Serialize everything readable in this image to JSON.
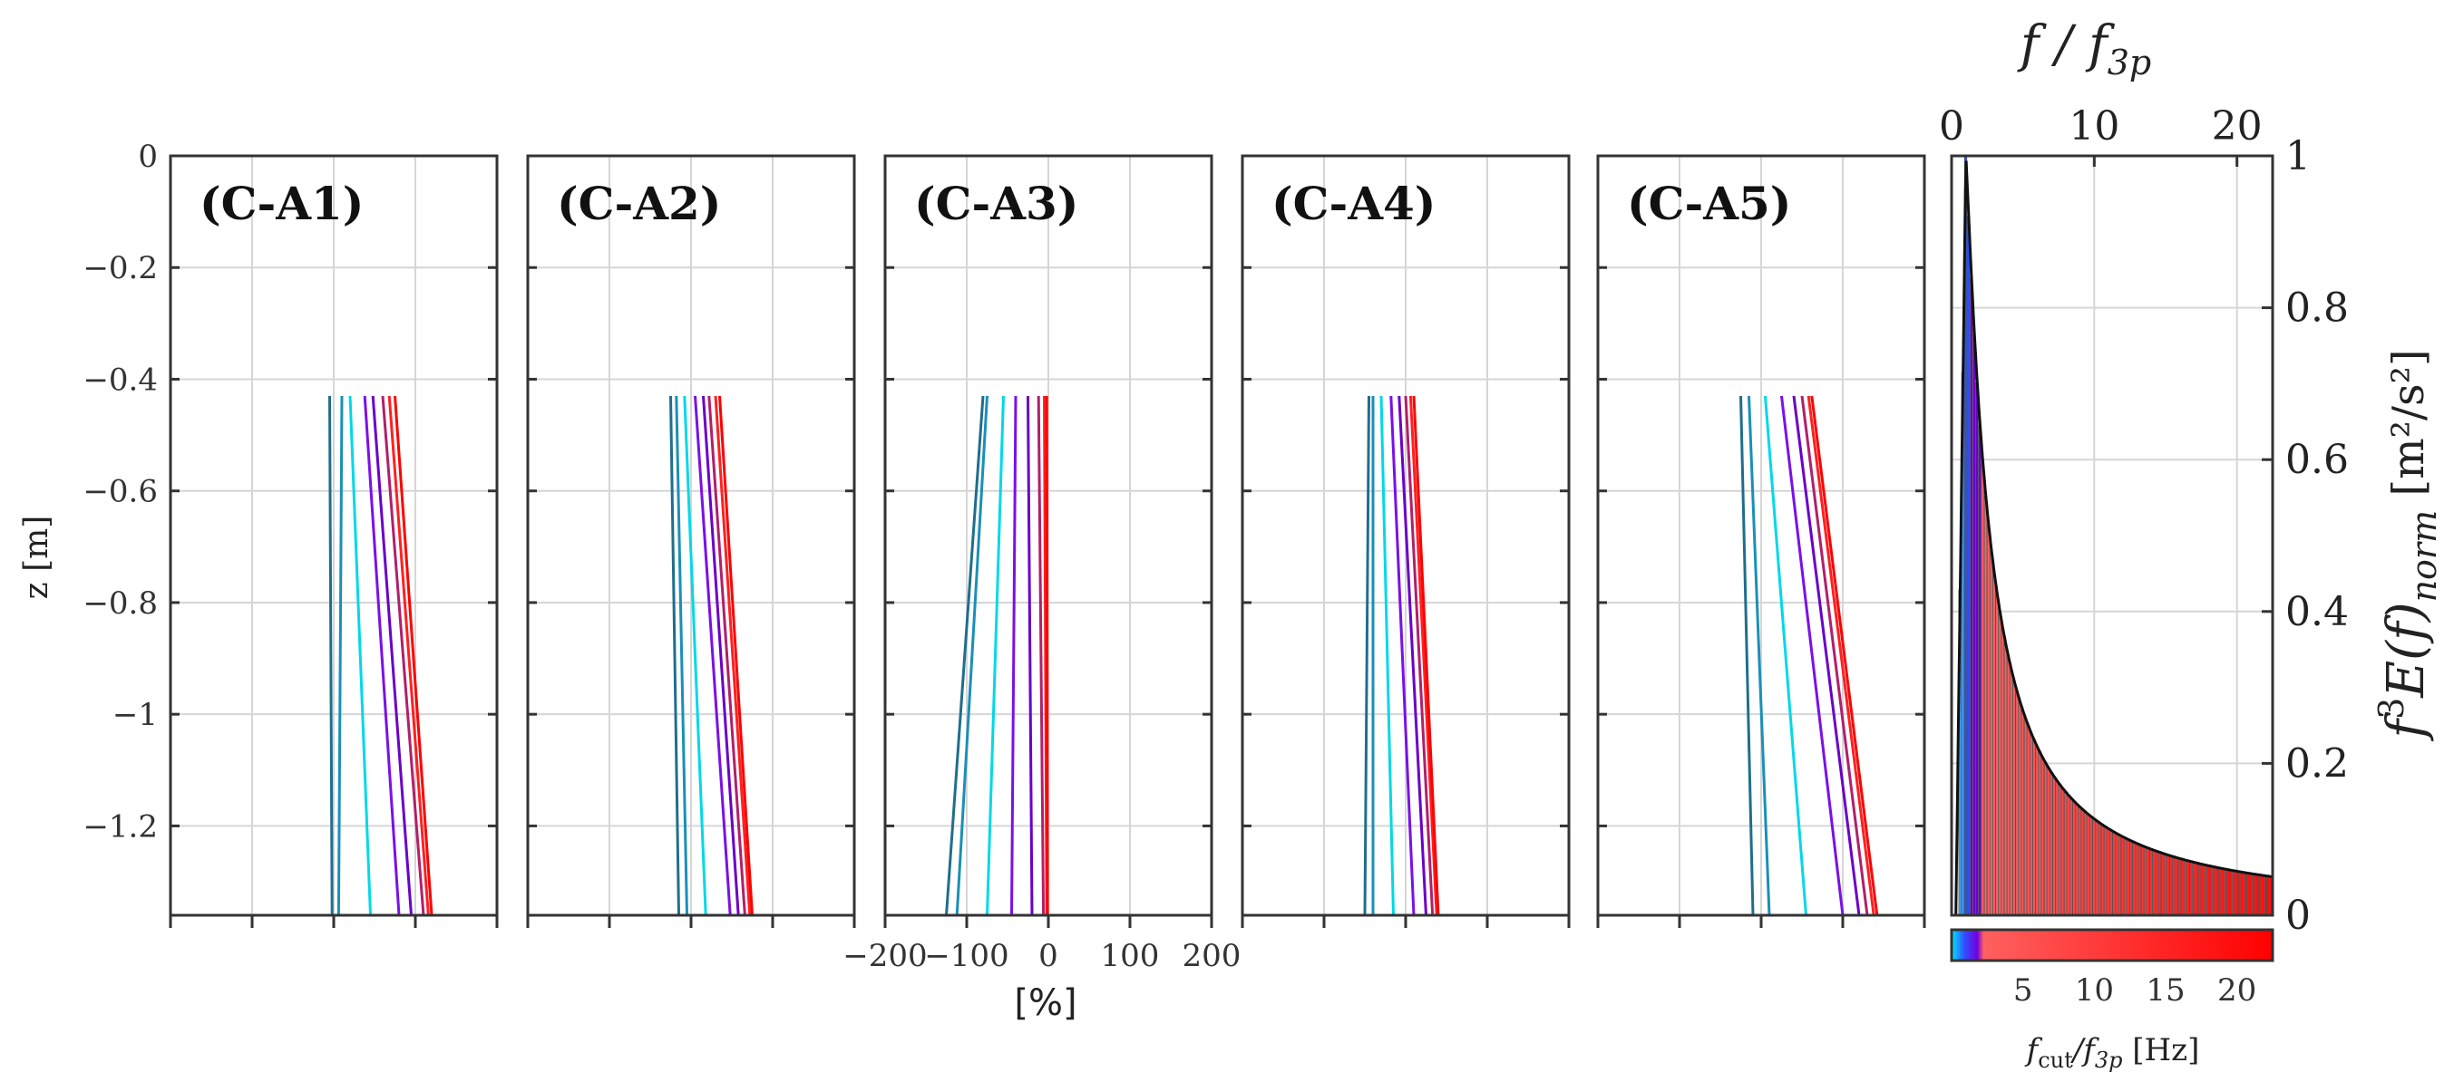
{
  "figure": {
    "shared_ylabel": "z [m]",
    "shared_xlabel": "[%]",
    "line_colors": [
      "#1f6e8c",
      "#1a8fb8",
      "#00d8e8",
      "#7a10e8",
      "#6a00c8",
      "#b0206a",
      "#ff2020",
      "#ff0000"
    ]
  },
  "chart_data": [
    {
      "type": "line",
      "panel": "(C-A1)",
      "xlim": [
        -200,
        200
      ],
      "ylim": [
        -1.36,
        0
      ],
      "grid": true,
      "xticks": [
        -200,
        -100,
        0,
        100,
        200
      ],
      "yticks": [
        0,
        -0.2,
        -0.4,
        -0.6,
        -0.8,
        -1,
        -1.2
      ],
      "show_x_ticklabels": false,
      "show_y_ticklabels": true,
      "series": [
        {
          "color": "#1f6e8c",
          "x_top": -5,
          "x_bottom": -2
        },
        {
          "color": "#1a8fb8",
          "x_top": 10,
          "x_bottom": 6
        },
        {
          "color": "#00d8e8",
          "x_top": 20,
          "x_bottom": 45
        },
        {
          "color": "#7a10e8",
          "x_top": 38,
          "x_bottom": 80
        },
        {
          "color": "#6a00c8",
          "x_top": 48,
          "x_bottom": 95
        },
        {
          "color": "#b0206a",
          "x_top": 60,
          "x_bottom": 110
        },
        {
          "color": "#ff2020",
          "x_top": 68,
          "x_bottom": 116
        },
        {
          "color": "#ff0000",
          "x_top": 75,
          "x_bottom": 120
        }
      ],
      "z_top": -0.43,
      "z_bottom": -1.36
    },
    {
      "type": "line",
      "panel": "(C-A2)",
      "xlim": [
        -200,
        200
      ],
      "ylim": [
        -1.36,
        0
      ],
      "grid": true,
      "xticks": [
        -200,
        -100,
        0,
        100,
        200
      ],
      "yticks": [
        0,
        -0.2,
        -0.4,
        -0.6,
        -0.8,
        -1,
        -1.2
      ],
      "show_x_ticklabels": false,
      "show_y_ticklabels": false,
      "series": [
        {
          "color": "#1f6e8c",
          "x_top": -25,
          "x_bottom": -15
        },
        {
          "color": "#1a8fb8",
          "x_top": -18,
          "x_bottom": -5
        },
        {
          "color": "#00d8e8",
          "x_top": -8,
          "x_bottom": 18
        },
        {
          "color": "#7a10e8",
          "x_top": 5,
          "x_bottom": 48
        },
        {
          "color": "#6a00c8",
          "x_top": 15,
          "x_bottom": 58
        },
        {
          "color": "#b0206a",
          "x_top": 22,
          "x_bottom": 66
        },
        {
          "color": "#ff2020",
          "x_top": 30,
          "x_bottom": 72
        },
        {
          "color": "#ff0000",
          "x_top": 35,
          "x_bottom": 75
        }
      ],
      "z_top": -0.43,
      "z_bottom": -1.36
    },
    {
      "type": "line",
      "panel": "(C-A3)",
      "xlim": [
        -200,
        200
      ],
      "ylim": [
        -1.36,
        0
      ],
      "grid": true,
      "xticks": [
        -200,
        -100,
        0,
        100,
        200
      ],
      "yticks": [
        0,
        -0.2,
        -0.4,
        -0.6,
        -0.8,
        -1,
        -1.2
      ],
      "show_x_ticklabels": true,
      "show_y_ticklabels": false,
      "xticklabels": [
        "−200",
        "−100",
        "0",
        "100",
        "200"
      ],
      "series": [
        {
          "color": "#1f6e8c",
          "x_top": -80,
          "x_bottom": -125
        },
        {
          "color": "#1a8fb8",
          "x_top": -75,
          "x_bottom": -112
        },
        {
          "color": "#00d8e8",
          "x_top": -55,
          "x_bottom": -75
        },
        {
          "color": "#7a10e8",
          "x_top": -40,
          "x_bottom": -45
        },
        {
          "color": "#6a00c8",
          "x_top": -25,
          "x_bottom": -20
        },
        {
          "color": "#b0206a",
          "x_top": -12,
          "x_bottom": -6
        },
        {
          "color": "#ff2020",
          "x_top": -5,
          "x_bottom": -2
        },
        {
          "color": "#ff0000",
          "x_top": -2,
          "x_bottom": -1
        }
      ],
      "z_top": -0.43,
      "z_bottom": -1.36
    },
    {
      "type": "line",
      "panel": "(C-A4)",
      "xlim": [
        -200,
        200
      ],
      "ylim": [
        -1.36,
        0
      ],
      "grid": true,
      "xticks": [
        -200,
        -100,
        0,
        100,
        200
      ],
      "yticks": [
        0,
        -0.2,
        -0.4,
        -0.6,
        -0.8,
        -1,
        -1.2
      ],
      "show_x_ticklabels": false,
      "show_y_ticklabels": false,
      "series": [
        {
          "color": "#1f6e8c",
          "x_top": -45,
          "x_bottom": -50
        },
        {
          "color": "#1a8fb8",
          "x_top": -40,
          "x_bottom": -40
        },
        {
          "color": "#00d8e8",
          "x_top": -30,
          "x_bottom": -15
        },
        {
          "color": "#7a10e8",
          "x_top": -18,
          "x_bottom": 10
        },
        {
          "color": "#6a00c8",
          "x_top": -8,
          "x_bottom": 25
        },
        {
          "color": "#b0206a",
          "x_top": 0,
          "x_bottom": 33
        },
        {
          "color": "#ff2020",
          "x_top": 6,
          "x_bottom": 38
        },
        {
          "color": "#ff0000",
          "x_top": 10,
          "x_bottom": 40
        }
      ],
      "z_top": -0.43,
      "z_bottom": -1.36
    },
    {
      "type": "line",
      "panel": "(C-A5)",
      "xlim": [
        -200,
        200
      ],
      "ylim": [
        -1.36,
        0
      ],
      "grid": true,
      "xticks": [
        -200,
        -100,
        0,
        100,
        200
      ],
      "yticks": [
        0,
        -0.2,
        -0.4,
        -0.6,
        -0.8,
        -1,
        -1.2
      ],
      "show_x_ticklabels": false,
      "show_y_ticklabels": false,
      "series": [
        {
          "color": "#1f6e8c",
          "x_top": -25,
          "x_bottom": -10
        },
        {
          "color": "#1a8fb8",
          "x_top": -15,
          "x_bottom": 10
        },
        {
          "color": "#00d8e8",
          "x_top": 5,
          "x_bottom": 55
        },
        {
          "color": "#7a10e8",
          "x_top": 25,
          "x_bottom": 100
        },
        {
          "color": "#6a00c8",
          "x_top": 40,
          "x_bottom": 120
        },
        {
          "color": "#b0206a",
          "x_top": 50,
          "x_bottom": 130
        },
        {
          "color": "#ff2020",
          "x_top": 58,
          "x_bottom": 138
        },
        {
          "color": "#ff0000",
          "x_top": 62,
          "x_bottom": 142
        }
      ],
      "z_top": -0.43,
      "z_bottom": -1.36
    },
    {
      "type": "bar",
      "panel": "spectrum",
      "top_xlabel": "f / f3p",
      "ylabel": "f^3 E(f)_norm [m^2/s^2]",
      "xlim": [
        0,
        22.5
      ],
      "ylim": [
        0,
        1
      ],
      "top_xticks": [
        0,
        10,
        20
      ],
      "top_xticklabels": [
        "0",
        "10",
        "20"
      ],
      "yticks": [
        0,
        0.2,
        0.4,
        0.6,
        0.8,
        1
      ],
      "yticklabels": [
        "0",
        "0.2",
        "0.4",
        "0.6",
        "0.8",
        "1"
      ],
      "peak_x": 1.0,
      "peak_y": 1.0,
      "decay": "power law ~ (f/f3p)^-1 above peak",
      "tail_value_at_22_5": 0.035,
      "grid": true
    },
    {
      "type": "heatmap",
      "panel": "colorbar",
      "xlabel": "fcut/f3p [Hz]",
      "xlim": [
        0,
        22.5
      ],
      "xticks": [
        5,
        10,
        15,
        20
      ],
      "xticklabels": [
        "5",
        "10",
        "15",
        "20"
      ],
      "colormap": [
        "#00e5ff",
        "#3050ff",
        "#7000e0",
        "#ff6060",
        "#ff0000"
      ]
    }
  ],
  "labels": {
    "panel_1": "(C-A1)",
    "panel_2": "(C-A2)",
    "panel_3": "(C-A3)",
    "panel_4": "(C-A4)",
    "panel_5": "(C-A5)",
    "ytick_0": "0",
    "ytick_1": "−0.2",
    "ytick_2": "−0.4",
    "ytick_3": "−0.6",
    "ytick_4": "−0.8",
    "ytick_5": "−1",
    "ytick_6": "−1.2",
    "z_label": "z [m]",
    "pct_label": "[%]",
    "top_x_label_main": "f / f",
    "top_x_label_sub": "3p",
    "right_label_main": "f",
    "right_label_sup": "3",
    "right_label_mid": "E(f)",
    "right_label_sub": "norm",
    "right_label_unit": " [m²/s²]",
    "cb_label_main": "f",
    "cb_label_sub": "cut",
    "cb_label_mid": "/f",
    "cb_label_sub2": "3p",
    "cb_label_unit": " [Hz]"
  }
}
